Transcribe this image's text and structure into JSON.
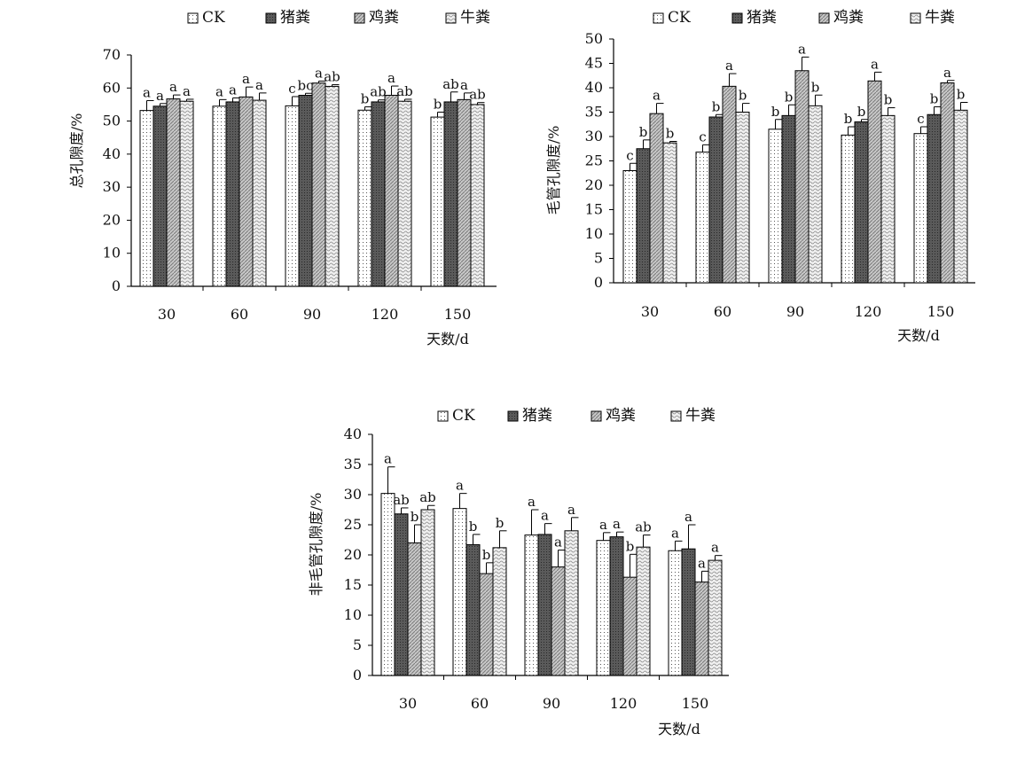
{
  "series_legend": [
    "CK",
    "猪粪",
    "鸡粪",
    "牛粪"
  ],
  "chart_data": [
    {
      "type": "bar",
      "ylabel": "总孔隙度/%",
      "xlabel": "天数/d",
      "ylim": [
        0,
        70
      ],
      "yticks": [
        0,
        10,
        20,
        30,
        40,
        50,
        60,
        70
      ],
      "categories": [
        "30",
        "60",
        "90",
        "120",
        "150"
      ],
      "series": [
        {
          "name": "CK",
          "values": [
            53.2,
            54.5,
            54.6,
            53.3,
            51.2
          ],
          "errors": [
            3.0,
            2.0,
            2.8,
            1.0,
            1.5
          ],
          "labels": [
            "a",
            "a",
            "c",
            "b",
            "b"
          ]
        },
        {
          "name": "猪粪",
          "values": [
            54.5,
            55.8,
            57.8,
            55.8,
            55.8
          ],
          "errors": [
            0.8,
            1.2,
            0.6,
            0.6,
            3.0
          ],
          "labels": [
            "a",
            "a",
            "bc",
            "ab",
            "ab"
          ]
        },
        {
          "name": "鸡粪",
          "values": [
            56.7,
            57.3,
            61.5,
            57.8,
            56.5
          ],
          "errors": [
            1.2,
            3.0,
            0.6,
            2.8,
            2.0
          ],
          "labels": [
            "a",
            "a",
            "a",
            "a",
            "a"
          ]
        },
        {
          "name": "牛粪",
          "values": [
            56.0,
            56.3,
            60.5,
            56.0,
            55.0
          ],
          "errors": [
            0.6,
            2.2,
            0.5,
            0.6,
            0.6
          ],
          "labels": [
            "a",
            "a",
            "ab",
            "ab",
            "ab"
          ]
        }
      ]
    },
    {
      "type": "bar",
      "ylabel": "毛管孔隙度/%",
      "xlabel": "天数/d",
      "ylim": [
        0,
        50
      ],
      "yticks": [
        0,
        5,
        10,
        15,
        20,
        25,
        30,
        35,
        40,
        45,
        50
      ],
      "categories": [
        "30",
        "60",
        "90",
        "120",
        "150"
      ],
      "series": [
        {
          "name": "CK",
          "values": [
            23.0,
            26.8,
            31.5,
            30.3,
            30.6
          ],
          "errors": [
            1.5,
            1.5,
            2.0,
            1.7,
            1.4
          ],
          "labels": [
            "c",
            "c",
            "b",
            "b",
            "c"
          ]
        },
        {
          "name": "猪粪",
          "values": [
            27.5,
            34.0,
            34.3,
            33.0,
            34.5
          ],
          "errors": [
            1.8,
            0.5,
            2.2,
            0.5,
            1.6
          ],
          "labels": [
            "b",
            "b",
            "b",
            "b",
            "b"
          ]
        },
        {
          "name": "鸡粪",
          "values": [
            34.7,
            40.3,
            43.5,
            41.4,
            41.0
          ],
          "errors": [
            2.1,
            2.6,
            2.8,
            1.8,
            0.5
          ],
          "labels": [
            "a",
            "a",
            "a",
            "a",
            "a"
          ]
        },
        {
          "name": "牛粪",
          "values": [
            28.7,
            35.0,
            36.3,
            34.3,
            35.4
          ],
          "errors": [
            0.3,
            1.8,
            2.2,
            1.6,
            1.6
          ],
          "labels": [
            "b",
            "b",
            "b",
            "b",
            "b"
          ]
        }
      ]
    },
    {
      "type": "bar",
      "ylabel": "非毛管孔隙度/%",
      "xlabel": "天数/d",
      "ylim": [
        0,
        40
      ],
      "yticks": [
        0,
        5,
        10,
        15,
        20,
        25,
        30,
        35,
        40
      ],
      "categories": [
        "30",
        "60",
        "90",
        "120",
        "150"
      ],
      "series": [
        {
          "name": "CK",
          "values": [
            30.2,
            27.7,
            23.3,
            22.4,
            20.7
          ],
          "errors": [
            4.4,
            2.5,
            4.2,
            1.3,
            1.6
          ],
          "labels": [
            "a",
            "a",
            "a",
            "a",
            "a"
          ]
        },
        {
          "name": "猪粪",
          "values": [
            26.8,
            21.7,
            23.4,
            23.0,
            21.0
          ],
          "errors": [
            1.0,
            1.7,
            1.8,
            0.8,
            4.0
          ],
          "labels": [
            "ab",
            "b",
            "a",
            "a",
            "a"
          ]
        },
        {
          "name": "鸡粪",
          "values": [
            22.0,
            16.9,
            18.0,
            16.3,
            15.5
          ],
          "errors": [
            3.0,
            1.8,
            2.8,
            3.8,
            1.8
          ],
          "labels": [
            "b",
            "b",
            "a",
            "b",
            "a"
          ]
        },
        {
          "name": "牛粪",
          "values": [
            27.5,
            21.2,
            24.0,
            21.3,
            19.1
          ],
          "errors": [
            0.7,
            2.8,
            2.2,
            2.0,
            0.8
          ],
          "labels": [
            "ab",
            "b",
            "a",
            "ab",
            "a"
          ]
        }
      ]
    }
  ]
}
